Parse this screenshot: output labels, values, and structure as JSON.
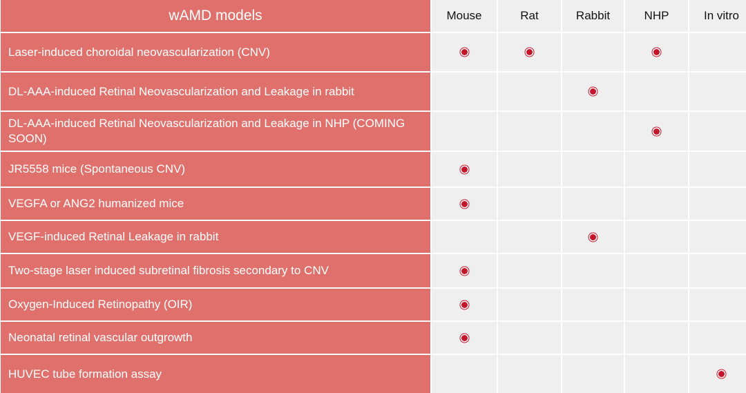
{
  "table": {
    "title": "wAMD models",
    "species": [
      "Mouse",
      "Rat",
      "Rabbit",
      "NHP",
      "In vitro"
    ],
    "marker_color": "#c4162a",
    "header_color": "#e0706b",
    "cell_color": "#efefef",
    "rows": [
      {
        "model": "Laser-induced choroidal neovascularization (CNV)",
        "mouse": true,
        "rat": true,
        "rabbit": false,
        "nhp": true,
        "in_vitro": false
      },
      {
        "model": "DL-AAA-induced Retinal Neovascularization and Leakage in rabbit",
        "mouse": false,
        "rat": false,
        "rabbit": true,
        "nhp": false,
        "in_vitro": false
      },
      {
        "model": "DL-AAA-induced Retinal Neovascularization and Leakage in NHP (COMING SOON)",
        "mouse": false,
        "rat": false,
        "rabbit": false,
        "nhp": true,
        "in_vitro": false
      },
      {
        "model": "JR5558 mice (Spontaneous CNV)",
        "mouse": true,
        "rat": false,
        "rabbit": false,
        "nhp": false,
        "in_vitro": false
      },
      {
        "model": "VEGFA or ANG2 humanized mice",
        "mouse": true,
        "rat": false,
        "rabbit": false,
        "nhp": false,
        "in_vitro": false
      },
      {
        "model": "VEGF-induced Retinal Leakage in rabbit",
        "mouse": false,
        "rat": false,
        "rabbit": true,
        "nhp": false,
        "in_vitro": false
      },
      {
        "model": "Two-stage laser induced subretinal fibrosis secondary to CNV",
        "mouse": true,
        "rat": false,
        "rabbit": false,
        "nhp": false,
        "in_vitro": false
      },
      {
        "model": "Oxygen-Induced Retinopathy (OIR)",
        "mouse": true,
        "rat": false,
        "rabbit": false,
        "nhp": false,
        "in_vitro": false
      },
      {
        "model": "Neonatal retinal vascular outgrowth",
        "mouse": true,
        "rat": false,
        "rabbit": false,
        "nhp": false,
        "in_vitro": false
      },
      {
        "model": "HUVEC tube formation assay",
        "mouse": false,
        "rat": false,
        "rabbit": false,
        "nhp": false,
        "in_vitro": true
      }
    ]
  }
}
